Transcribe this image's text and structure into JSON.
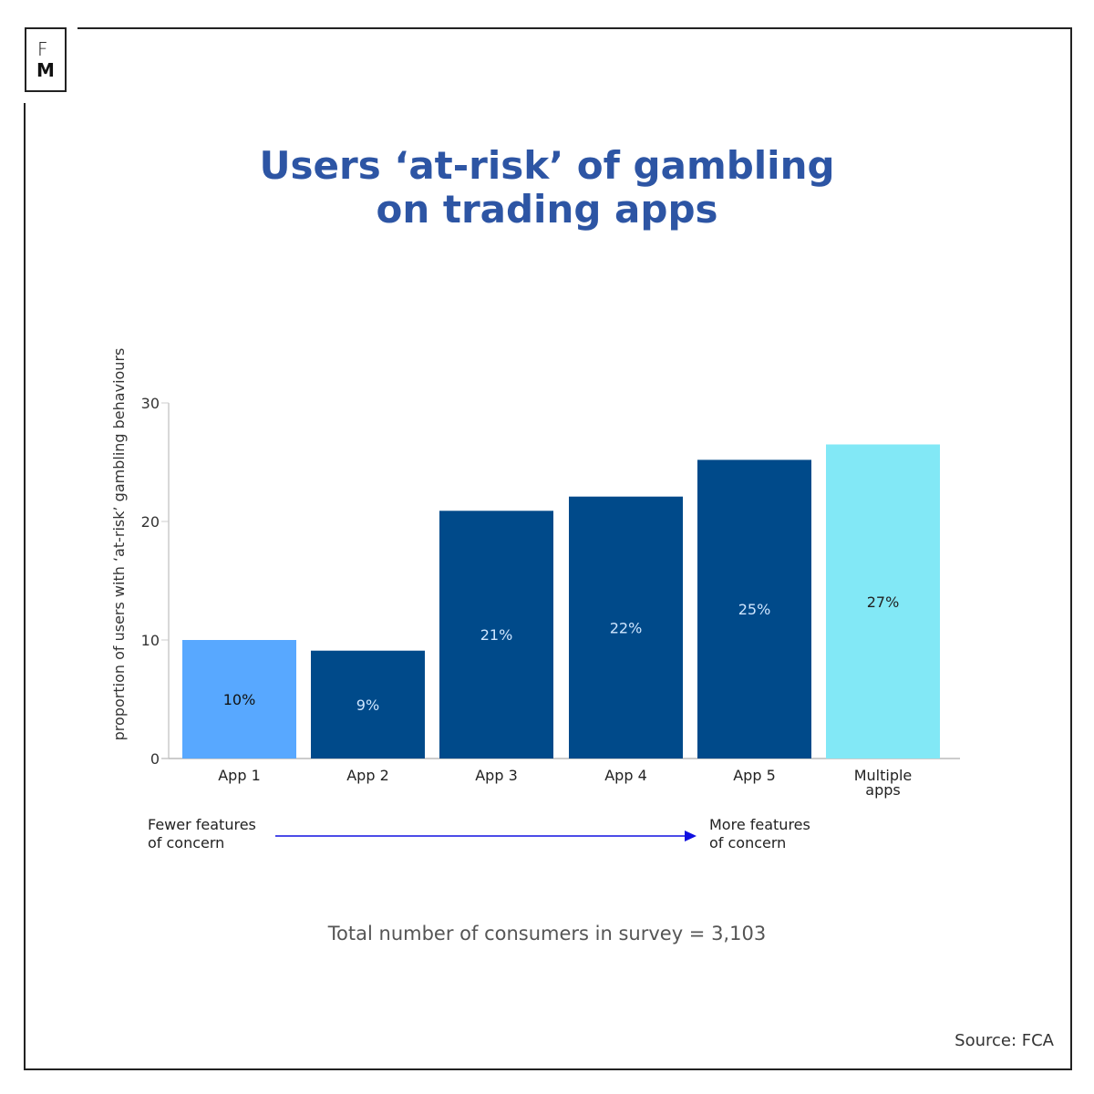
{
  "logo": {
    "top": "F",
    "bottom": "M"
  },
  "title_lines": [
    "Users ‘at-risk’ of gambling",
    "on trading apps"
  ],
  "note": "Total number of consumers in survey = 3,103",
  "source": "Source: FCA",
  "colors": {
    "title": "#2d55a4",
    "dark": "#004a8a",
    "light": "#58a8ff",
    "cyan": "#82e8f6",
    "arrow": "#1010e0"
  },
  "chart_data": {
    "type": "bar",
    "title": "Users ‘at-risk’ of gambling on trading apps",
    "ylabel": "proportion of users with ‘at-risk’ gambling behaviours",
    "xlabel": "",
    "ylim": [
      0,
      30
    ],
    "yticks": [
      "0",
      "10",
      "20",
      "30"
    ],
    "categories": [
      [
        "App 1"
      ],
      [
        "App 2"
      ],
      [
        "App 3"
      ],
      [
        "App 4"
      ],
      [
        "App 5"
      ],
      [
        "Multiple",
        "apps"
      ]
    ],
    "values": [
      10,
      9.1,
      20.9,
      22.1,
      25.2,
      26.5
    ],
    "data_labels": [
      "10%",
      "9%",
      "21%",
      "22%",
      "25%",
      "27%"
    ],
    "bar_colors": [
      "#58a8ff",
      "#004a8a",
      "#004a8a",
      "#004a8a",
      "#004a8a",
      "#82e8f6"
    ],
    "label_colors": [
      "#111",
      "#cfe6ff",
      "#cfe6ff",
      "#cfe6ff",
      "#cfe6ff",
      "#222"
    ],
    "annotation_left": [
      "Fewer features",
      "of concern"
    ],
    "annotation_right": [
      "More features",
      "of concern"
    ]
  }
}
